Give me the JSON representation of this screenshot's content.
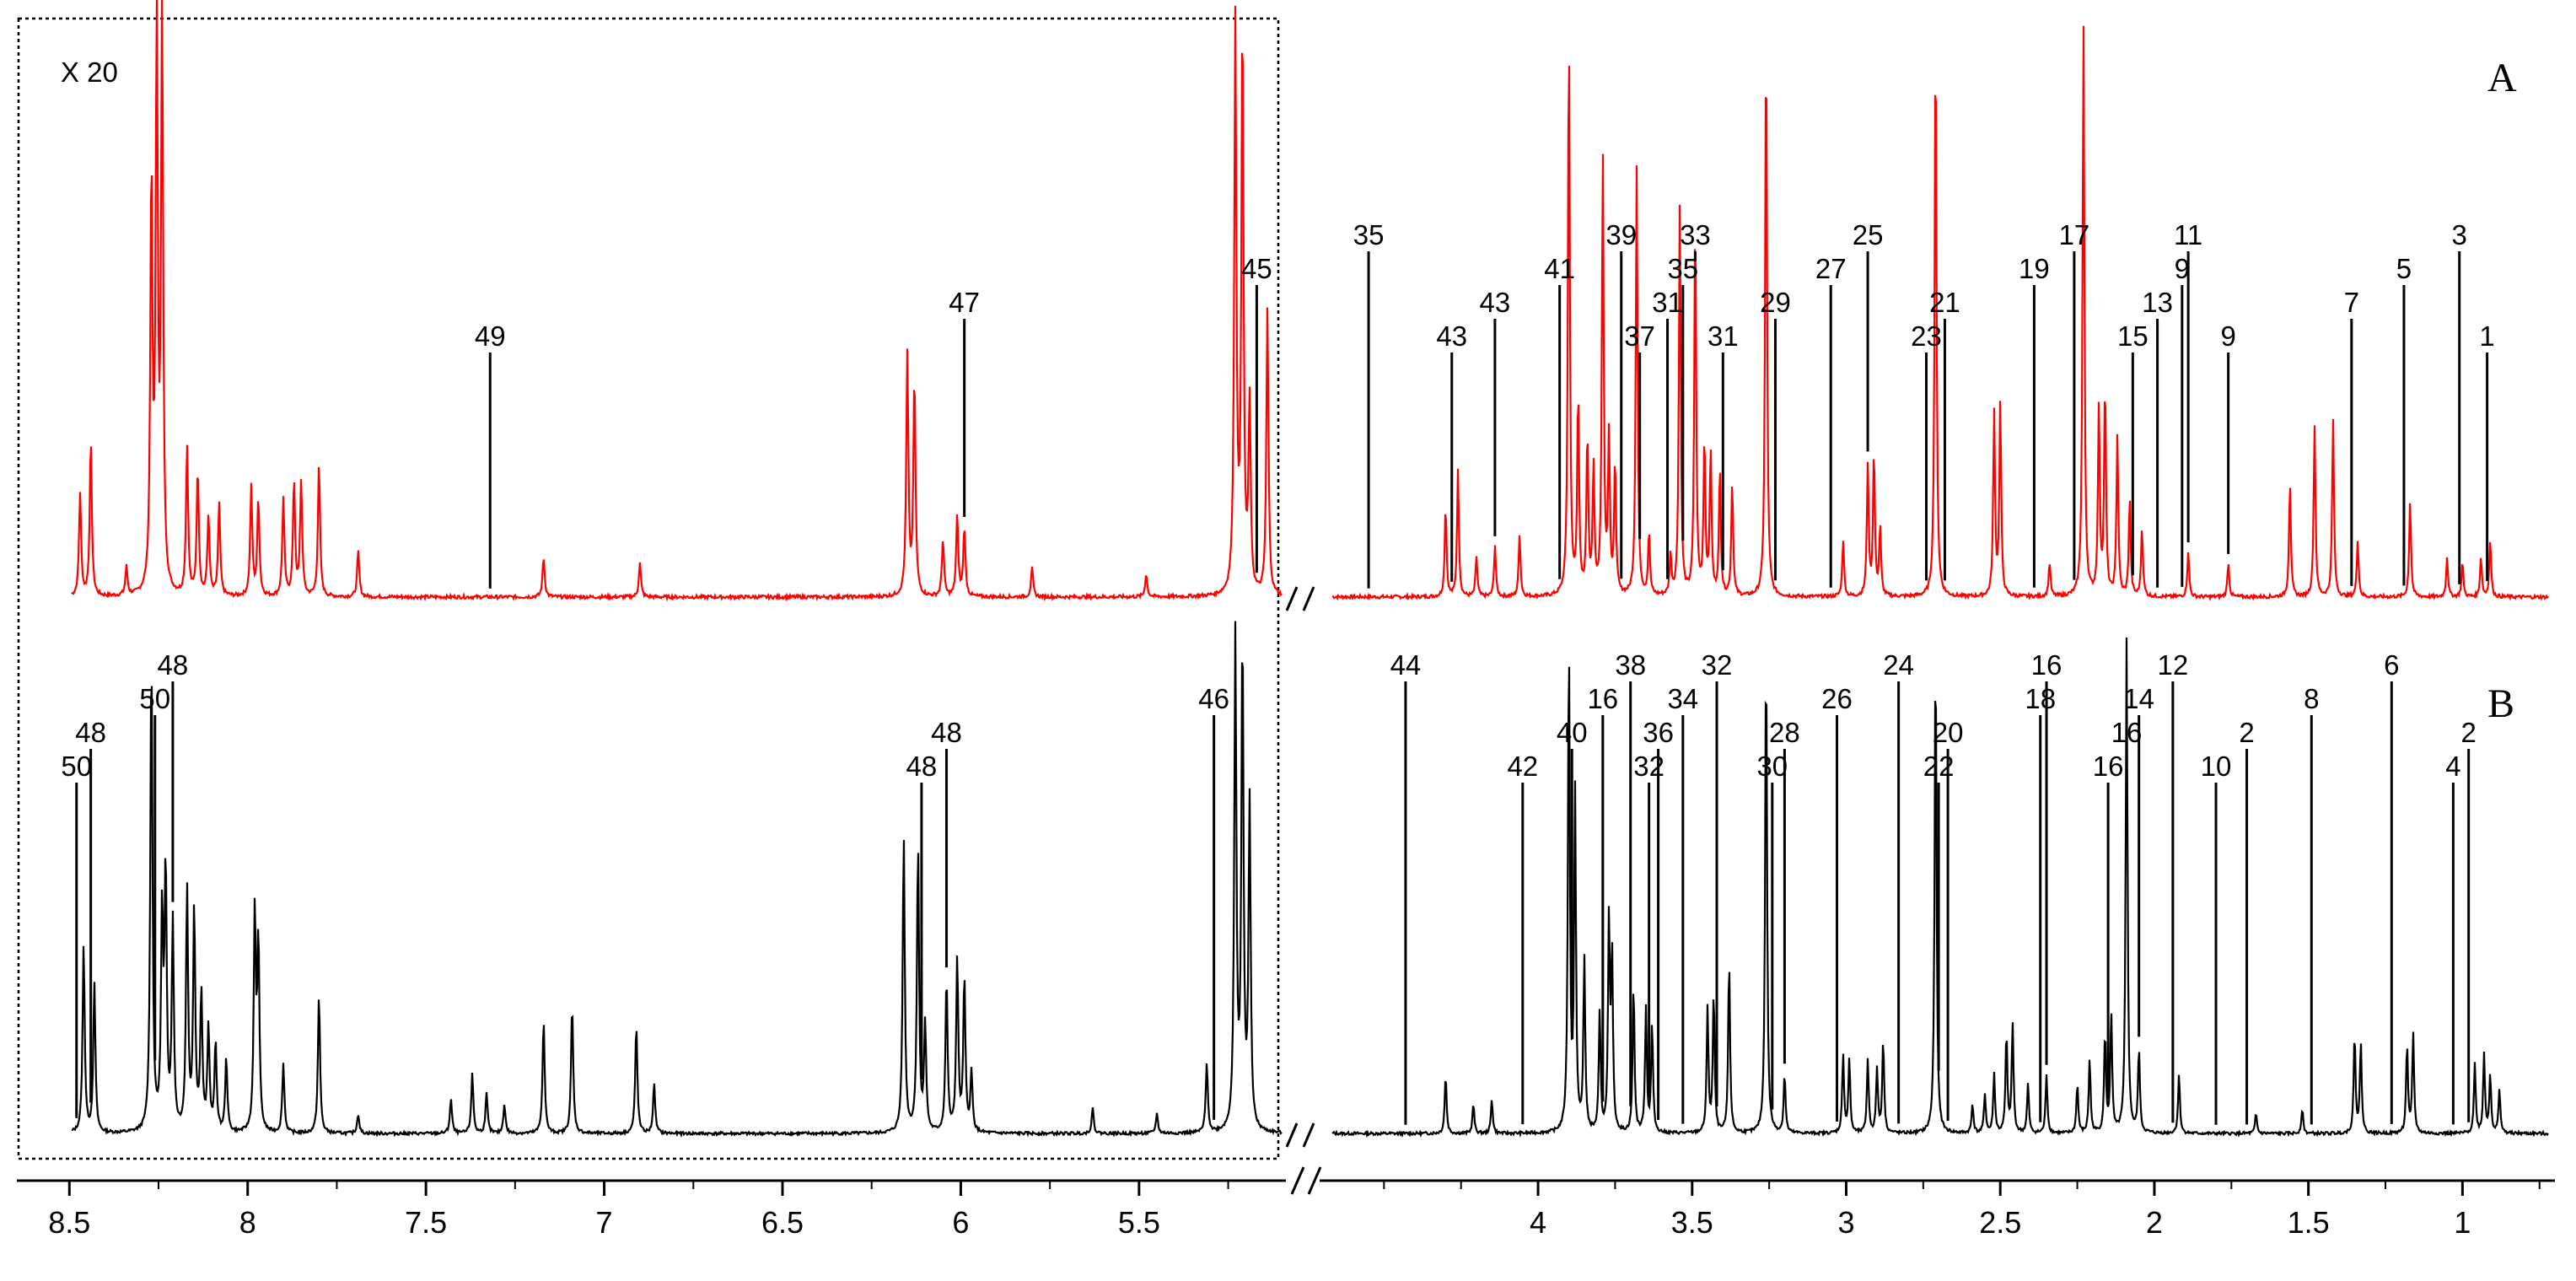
{
  "chart_data": {
    "type": "line",
    "xlabel": "",
    "ylabel": "",
    "x_reversed": true,
    "axis_break": "between 4.75 and 5.1 ppm",
    "xlim_left_segment": [
      8.6,
      5.1
    ],
    "xlim_right_segment": [
      4.75,
      0.7
    ],
    "ticks": [
      "8.5",
      "8",
      "7.5",
      "7",
      "6.5",
      "6",
      "5.5",
      "4",
      "3.5",
      "3",
      "2.5",
      "2",
      "1.5",
      "1"
    ],
    "zoom_box_label": "X 20",
    "panels": [
      {
        "id": "A",
        "label": "A",
        "color": "#ff0000",
        "peaks": [
          {
            "x": 8.47,
            "h": 0.18
          },
          {
            "x": 8.44,
            "h": 0.27
          },
          {
            "x": 8.34,
            "h": 0.05
          },
          {
            "x": 8.27,
            "h": 0.72
          },
          {
            "x": 8.255,
            "h": 1.0
          },
          {
            "x": 8.24,
            "h": 1.0
          },
          {
            "x": 8.17,
            "h": 0.26
          },
          {
            "x": 8.14,
            "h": 0.22
          },
          {
            "x": 8.11,
            "h": 0.14
          },
          {
            "x": 8.08,
            "h": 0.16
          },
          {
            "x": 7.99,
            "h": 0.19
          },
          {
            "x": 7.97,
            "h": 0.17
          },
          {
            "x": 7.9,
            "h": 0.17
          },
          {
            "x": 7.87,
            "h": 0.2
          },
          {
            "x": 7.85,
            "h": 0.2
          },
          {
            "x": 7.8,
            "h": 0.23
          },
          {
            "x": 7.69,
            "h": 0.08
          },
          {
            "x": 7.17,
            "h": 0.07
          },
          {
            "x": 6.9,
            "h": 0.06
          },
          {
            "x": 6.15,
            "h": 0.42
          },
          {
            "x": 6.13,
            "h": 0.38
          },
          {
            "x": 6.05,
            "h": 0.1
          },
          {
            "x": 6.01,
            "h": 0.14
          },
          {
            "x": 5.99,
            "h": 0.12
          },
          {
            "x": 5.8,
            "h": 0.05
          },
          {
            "x": 5.48,
            "h": 0.04
          },
          {
            "x": 5.23,
            "h": 1.0
          },
          {
            "x": 5.21,
            "h": 1.0
          },
          {
            "x": 5.19,
            "h": 0.33
          },
          {
            "x": 5.14,
            "h": 0.5
          },
          {
            "x": 4.72,
            "h": 0.07
          },
          {
            "x": 4.3,
            "h": 0.16
          },
          {
            "x": 4.26,
            "h": 0.22
          },
          {
            "x": 4.2,
            "h": 0.07
          },
          {
            "x": 4.14,
            "h": 0.09
          },
          {
            "x": 4.06,
            "h": 0.11
          },
          {
            "x": 3.9,
            "h": 1.0
          },
          {
            "x": 3.87,
            "h": 0.35
          },
          {
            "x": 3.84,
            "h": 0.28
          },
          {
            "x": 3.82,
            "h": 0.22
          },
          {
            "x": 3.79,
            "h": 0.77
          },
          {
            "x": 3.77,
            "h": 0.27
          },
          {
            "x": 3.75,
            "h": 0.23
          },
          {
            "x": 3.68,
            "h": 0.75
          },
          {
            "x": 3.64,
            "h": 0.11
          },
          {
            "x": 3.57,
            "h": 0.07
          },
          {
            "x": 3.54,
            "h": 0.69
          },
          {
            "x": 3.49,
            "h": 0.67
          },
          {
            "x": 3.46,
            "h": 0.27
          },
          {
            "x": 3.44,
            "h": 0.25
          },
          {
            "x": 3.41,
            "h": 0.22
          },
          {
            "x": 3.37,
            "h": 0.2
          },
          {
            "x": 3.26,
            "h": 1.0
          },
          {
            "x": 3.01,
            "h": 0.1
          },
          {
            "x": 2.93,
            "h": 0.23
          },
          {
            "x": 2.91,
            "h": 0.25
          },
          {
            "x": 2.89,
            "h": 0.12
          },
          {
            "x": 2.71,
            "h": 1.0
          },
          {
            "x": 2.52,
            "h": 0.32
          },
          {
            "x": 2.5,
            "h": 0.34
          },
          {
            "x": 2.34,
            "h": 0.06
          },
          {
            "x": 2.23,
            "h": 1.0
          },
          {
            "x": 2.18,
            "h": 0.33
          },
          {
            "x": 2.16,
            "h": 0.37
          },
          {
            "x": 2.12,
            "h": 0.28
          },
          {
            "x": 2.08,
            "h": 0.17
          },
          {
            "x": 2.04,
            "h": 0.12
          },
          {
            "x": 1.89,
            "h": 0.08
          },
          {
            "x": 1.76,
            "h": 0.06
          },
          {
            "x": 1.56,
            "h": 0.2
          },
          {
            "x": 1.48,
            "h": 0.3
          },
          {
            "x": 1.42,
            "h": 0.31
          },
          {
            "x": 1.34,
            "h": 0.1
          },
          {
            "x": 1.17,
            "h": 0.17
          },
          {
            "x": 1.05,
            "h": 0.07
          },
          {
            "x": 1.0,
            "h": 0.06
          },
          {
            "x": 0.94,
            "h": 0.07
          },
          {
            "x": 0.91,
            "h": 0.1
          }
        ],
        "annotations": [
          {
            "label": "49",
            "x": 7.32
          },
          {
            "label": "47",
            "x": 5.99
          },
          {
            "label": "45",
            "x": 5.17
          },
          {
            "label": "35",
            "x": 4.55
          },
          {
            "label": "43",
            "x": 4.28
          },
          {
            "label": "43",
            "x": 4.14
          },
          {
            "label": "41",
            "x": 3.93
          },
          {
            "label": "39",
            "x": 3.73
          },
          {
            "label": "37",
            "x": 3.67
          },
          {
            "label": "31",
            "x": 3.58
          },
          {
            "label": "35",
            "x": 3.53
          },
          {
            "label": "33",
            "x": 3.49
          },
          {
            "label": "31",
            "x": 3.4
          },
          {
            "label": "29",
            "x": 3.23
          },
          {
            "label": "27",
            "x": 3.05
          },
          {
            "label": "25",
            "x": 2.93
          },
          {
            "label": "23",
            "x": 2.74
          },
          {
            "label": "21",
            "x": 2.68
          },
          {
            "label": "19",
            "x": 2.39
          },
          {
            "label": "17",
            "x": 2.26
          },
          {
            "label": "15",
            "x": 2.07
          },
          {
            "label": "13",
            "x": 1.99
          },
          {
            "label": "9",
            "x": 1.91
          },
          {
            "label": "11",
            "x": 1.89
          },
          {
            "label": "9",
            "x": 1.76
          },
          {
            "label": "7",
            "x": 1.36
          },
          {
            "label": "5",
            "x": 1.19
          },
          {
            "label": "3",
            "x": 1.01
          },
          {
            "label": "1",
            "x": 0.92
          }
        ]
      },
      {
        "id": "B",
        "label": "B",
        "color": "#000000",
        "peaks": [
          {
            "x": 8.52,
            "h": 0.04
          },
          {
            "x": 8.46,
            "h": 0.38
          },
          {
            "x": 8.43,
            "h": 0.3
          },
          {
            "x": 8.27,
            "h": 0.98
          },
          {
            "x": 8.24,
            "h": 0.43
          },
          {
            "x": 8.23,
            "h": 0.52
          },
          {
            "x": 8.21,
            "h": 0.42
          },
          {
            "x": 8.17,
            "h": 0.49
          },
          {
            "x": 8.15,
            "h": 0.45
          },
          {
            "x": 8.13,
            "h": 0.28
          },
          {
            "x": 8.11,
            "h": 0.21
          },
          {
            "x": 8.09,
            "h": 0.18
          },
          {
            "x": 8.06,
            "h": 0.15
          },
          {
            "x": 7.98,
            "h": 0.44
          },
          {
            "x": 7.97,
            "h": 0.38
          },
          {
            "x": 7.9,
            "h": 0.14
          },
          {
            "x": 7.8,
            "h": 0.28
          },
          {
            "x": 7.69,
            "h": 0.04
          },
          {
            "x": 7.43,
            "h": 0.07
          },
          {
            "x": 7.37,
            "h": 0.12
          },
          {
            "x": 7.33,
            "h": 0.08
          },
          {
            "x": 7.28,
            "h": 0.06
          },
          {
            "x": 7.17,
            "h": 0.23
          },
          {
            "x": 7.09,
            "h": 0.26
          },
          {
            "x": 6.91,
            "h": 0.22
          },
          {
            "x": 6.86,
            "h": 0.1
          },
          {
            "x": 6.16,
            "h": 0.6
          },
          {
            "x": 6.12,
            "h": 0.58
          },
          {
            "x": 6.1,
            "h": 0.22
          },
          {
            "x": 6.04,
            "h": 0.31
          },
          {
            "x": 6.01,
            "h": 0.35
          },
          {
            "x": 5.99,
            "h": 0.31
          },
          {
            "x": 5.97,
            "h": 0.12
          },
          {
            "x": 5.63,
            "h": 0.05
          },
          {
            "x": 5.45,
            "h": 0.04
          },
          {
            "x": 5.31,
            "h": 0.14
          },
          {
            "x": 5.23,
            "h": 1.0
          },
          {
            "x": 5.21,
            "h": 1.0
          },
          {
            "x": 5.19,
            "h": 0.66
          },
          {
            "x": 4.69,
            "h": 0.04
          },
          {
            "x": 4.3,
            "h": 0.12
          },
          {
            "x": 4.21,
            "h": 0.06
          },
          {
            "x": 4.15,
            "h": 0.07
          },
          {
            "x": 3.9,
            "h": 1.0
          },
          {
            "x": 3.88,
            "h": 0.68
          },
          {
            "x": 3.85,
            "h": 0.35
          },
          {
            "x": 3.8,
            "h": 0.24
          },
          {
            "x": 3.77,
            "h": 0.42
          },
          {
            "x": 3.76,
            "h": 0.35
          },
          {
            "x": 3.69,
            "h": 0.3
          },
          {
            "x": 3.65,
            "h": 0.25
          },
          {
            "x": 3.63,
            "h": 0.22
          },
          {
            "x": 3.45,
            "h": 0.25
          },
          {
            "x": 3.43,
            "h": 0.28
          },
          {
            "x": 3.38,
            "h": 0.35
          },
          {
            "x": 3.26,
            "h": 1.0
          },
          {
            "x": 3.2,
            "h": 0.12
          },
          {
            "x": 3.01,
            "h": 0.16
          },
          {
            "x": 2.99,
            "h": 0.15
          },
          {
            "x": 2.93,
            "h": 0.15
          },
          {
            "x": 2.9,
            "h": 0.13
          },
          {
            "x": 2.88,
            "h": 0.19
          },
          {
            "x": 2.71,
            "h": 1.0
          },
          {
            "x": 2.59,
            "h": 0.06
          },
          {
            "x": 2.55,
            "h": 0.08
          },
          {
            "x": 2.52,
            "h": 0.12
          },
          {
            "x": 2.48,
            "h": 0.2
          },
          {
            "x": 2.46,
            "h": 0.22
          },
          {
            "x": 2.41,
            "h": 0.1
          },
          {
            "x": 2.35,
            "h": 0.12
          },
          {
            "x": 2.25,
            "h": 0.1
          },
          {
            "x": 2.21,
            "h": 0.15
          },
          {
            "x": 2.16,
            "h": 0.2
          },
          {
            "x": 2.14,
            "h": 0.24
          },
          {
            "x": 2.09,
            "h": 1.0
          },
          {
            "x": 2.05,
            "h": 0.17
          },
          {
            "x": 1.92,
            "h": 0.12
          },
          {
            "x": 1.67,
            "h": 0.04
          },
          {
            "x": 1.52,
            "h": 0.05
          },
          {
            "x": 1.35,
            "h": 0.2
          },
          {
            "x": 1.33,
            "h": 0.18
          },
          {
            "x": 1.18,
            "h": 0.18
          },
          {
            "x": 1.16,
            "h": 0.2
          },
          {
            "x": 0.96,
            "h": 0.14
          },
          {
            "x": 0.93,
            "h": 0.16
          },
          {
            "x": 0.91,
            "h": 0.12
          },
          {
            "x": 0.88,
            "h": 0.09
          }
        ],
        "annotations": [
          {
            "label": "50",
            "x": 8.48
          },
          {
            "label": "48",
            "x": 8.44
          },
          {
            "label": "50",
            "x": 8.26
          },
          {
            "label": "48",
            "x": 8.21
          },
          {
            "label": "48",
            "x": 6.11
          },
          {
            "label": "48",
            "x": 6.04
          },
          {
            "label": "46",
            "x": 5.29
          },
          {
            "label": "44",
            "x": 4.43
          },
          {
            "label": "42",
            "x": 4.05
          },
          {
            "label": "40",
            "x": 3.89
          },
          {
            "label": "16",
            "x": 3.79
          },
          {
            "label": "38",
            "x": 3.7
          },
          {
            "label": "32",
            "x": 3.64
          },
          {
            "label": "36",
            "x": 3.61
          },
          {
            "label": "34",
            "x": 3.53
          },
          {
            "label": "32",
            "x": 3.42
          },
          {
            "label": "30",
            "x": 3.24
          },
          {
            "label": "28",
            "x": 3.2
          },
          {
            "label": "26",
            "x": 3.03
          },
          {
            "label": "24",
            "x": 2.83
          },
          {
            "label": "22",
            "x": 2.7
          },
          {
            "label": "20",
            "x": 2.67
          },
          {
            "label": "18",
            "x": 2.37
          },
          {
            "label": "16",
            "x": 2.35
          },
          {
            "label": "16",
            "x": 2.15
          },
          {
            "label": "16",
            "x": 2.09
          },
          {
            "label": "14",
            "x": 2.05
          },
          {
            "label": "12",
            "x": 1.94
          },
          {
            "label": "10",
            "x": 1.8
          },
          {
            "label": "2",
            "x": 1.7
          },
          {
            "label": "8",
            "x": 1.49
          },
          {
            "label": "6",
            "x": 1.23
          },
          {
            "label": "4",
            "x": 1.03
          },
          {
            "label": "2",
            "x": 0.98
          }
        ]
      }
    ]
  }
}
